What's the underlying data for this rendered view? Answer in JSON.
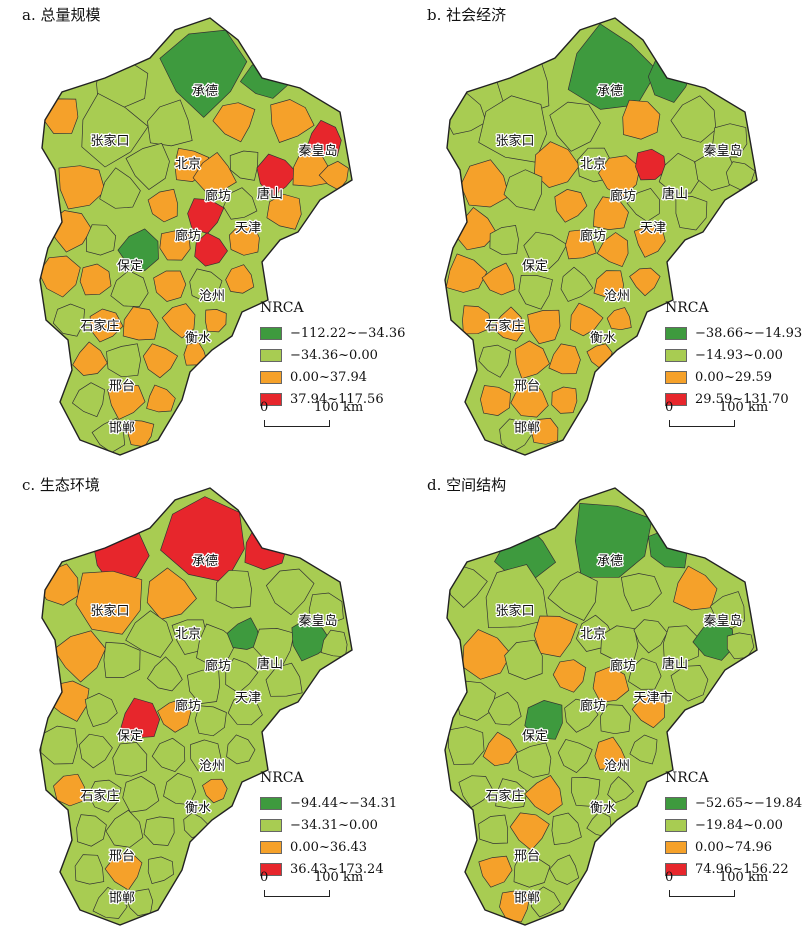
{
  "colors": {
    "c1": "#3e9a3e",
    "c2": "#a8cc52",
    "c3": "#f5a12a",
    "c4": "#e7262c",
    "outline": "#333333"
  },
  "panels": [
    {
      "title": "a. 总量规模",
      "legend_title": "NRCA",
      "classes": [
        "−112.22~−34.36",
        "−34.36~0.00",
        "0.00~37.94",
        "37.94~117.56"
      ],
      "cities": [
        "承德",
        "张家口",
        "北京",
        "秦皇岛",
        "廊坊",
        "唐山",
        "廊坊",
        "天津",
        "保定",
        "沧州",
        "石家庄",
        "衡水",
        "邢台",
        "邯郸"
      ],
      "scale": {
        "zero": "0",
        "label": "100 km"
      },
      "region_classes": [
        0,
        1,
        0,
        2,
        1,
        1,
        2,
        2,
        3,
        1,
        2,
        2,
        1,
        3,
        2,
        2,
        2,
        1,
        2,
        3,
        1,
        2,
        2,
        1,
        0,
        2,
        3,
        2,
        2,
        2,
        1,
        2,
        1,
        2,
        1,
        2,
        2,
        2,
        2,
        2,
        1,
        2,
        2,
        1,
        2,
        2,
        1,
        2
      ]
    },
    {
      "title": "b. 社会经济",
      "legend_title": "NRCA",
      "classes": [
        "−38.66~−14.93",
        "−14.93~0.00",
        "0.00~29.59",
        "29.59~131.70"
      ],
      "cities": [
        "承德",
        "张家口",
        "北京",
        "秦皇岛",
        "廊坊",
        "唐山",
        "廊坊",
        "天津",
        "保定",
        "沧州",
        "石家庄",
        "衡水",
        "邢台",
        "邯郸"
      ],
      "scale": {
        "zero": "0",
        "label": "100 km"
      },
      "region_classes": [
        0,
        1,
        0,
        1,
        1,
        1,
        2,
        1,
        1,
        2,
        1,
        2,
        3,
        1,
        1,
        1,
        2,
        1,
        2,
        2,
        1,
        1,
        2,
        1,
        1,
        2,
        2,
        2,
        2,
        2,
        1,
        1,
        2,
        2,
        2,
        2,
        2,
        2,
        2,
        1,
        2,
        2,
        2,
        2,
        2,
        2,
        1,
        2
      ]
    },
    {
      "title": "c. 生态环境",
      "legend_title": "NRCA",
      "classes": [
        "−94.44~−34.31",
        "−34.31~0.00",
        "0.00~36.43",
        "36.43~173.24"
      ],
      "cities": [
        "承德",
        "张家口",
        "北京",
        "秦皇岛",
        "廊坊",
        "唐山",
        "廊坊",
        "天津",
        "保定",
        "沧州",
        "石家庄",
        "衡水",
        "邢台",
        "邯郸"
      ],
      "scale": {
        "zero": "0",
        "label": "100 km"
      },
      "region_classes": [
        3,
        3,
        3,
        2,
        2,
        2,
        1,
        1,
        1,
        1,
        1,
        1,
        0,
        1,
        0,
        1,
        2,
        1,
        1,
        1,
        1,
        1,
        2,
        1,
        3,
        2,
        1,
        1,
        1,
        1,
        1,
        1,
        1,
        1,
        2,
        1,
        1,
        1,
        2,
        1,
        1,
        1,
        1,
        1,
        2,
        1,
        1,
        1
      ]
    },
    {
      "title": "d. 空间结构",
      "legend_title": "NRCA",
      "classes": [
        "−52.65~−19.84",
        "−19.84~0.00",
        "0.00~74.96",
        "74.96~156.22"
      ],
      "cities": [
        "承德",
        "张家口",
        "北京",
        "秦皇岛",
        "廊坊",
        "唐山",
        "廊坊",
        "天津市",
        "保定",
        "沧州",
        "石家庄",
        "衡水",
        "邢台",
        "邯郸"
      ],
      "scale": {
        "zero": "0",
        "label": "100 km"
      },
      "region_classes": [
        0,
        0,
        0,
        1,
        1,
        1,
        1,
        2,
        1,
        2,
        1,
        1,
        1,
        1,
        0,
        1,
        2,
        1,
        2,
        2,
        1,
        1,
        1,
        1,
        0,
        1,
        1,
        2,
        1,
        2,
        1,
        1,
        2,
        1,
        1,
        1,
        2,
        1,
        1,
        1,
        2,
        1,
        1,
        2,
        1,
        1,
        2,
        1
      ]
    }
  ]
}
